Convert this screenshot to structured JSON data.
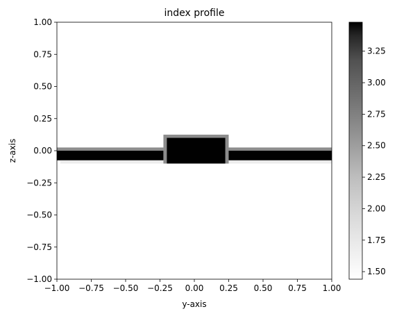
{
  "chart_data": {
    "type": "heatmap",
    "title": "index profile",
    "xlabel": "y-axis",
    "ylabel": "z-axis",
    "xlim": [
      -1.0,
      1.0
    ],
    "ylim": [
      -1.0,
      1.0
    ],
    "x_ticks": [
      "−1.00",
      "−0.75",
      "−0.50",
      "−0.25",
      "0.00",
      "0.25",
      "0.50",
      "0.75",
      "1.00"
    ],
    "y_ticks": [
      "−1.00",
      "−0.75",
      "−0.50",
      "−0.25",
      "0.00",
      "0.25",
      "0.50",
      "0.75",
      "1.00"
    ],
    "colorbar": {
      "range": [
        1.44,
        3.48
      ],
      "colormap": "Greys",
      "ticks": [
        "1.50",
        "1.75",
        "2.00",
        "2.25",
        "2.50",
        "2.75",
        "3.00",
        "3.25"
      ]
    },
    "regions": [
      {
        "name": "slab-top-edge-left",
        "y": [
          -1.0,
          -0.225
        ],
        "z": [
          0.0,
          0.025
        ],
        "n": 2.65
      },
      {
        "name": "slab-top-edge-right",
        "y": [
          0.225,
          1.0
        ],
        "z": [
          0.0,
          0.025
        ],
        "n": 2.65
      },
      {
        "name": "slab-core-left",
        "y": [
          -1.0,
          -0.225
        ],
        "z": [
          -0.075,
          0.0
        ],
        "n": 3.476
      },
      {
        "name": "slab-core-right",
        "y": [
          0.225,
          1.0
        ],
        "z": [
          -0.075,
          0.0
        ],
        "n": 3.476
      },
      {
        "name": "slab-bottom-edge-left",
        "y": [
          -0.975,
          -0.225
        ],
        "z": [
          -0.1,
          -0.075
        ],
        "n": 1.7
      },
      {
        "name": "slab-bottom-edge-right",
        "y": [
          0.225,
          1.0
        ],
        "z": [
          -0.1,
          -0.075
        ],
        "n": 1.7
      },
      {
        "name": "ridge-outer",
        "y": [
          -0.225,
          0.25
        ],
        "z": [
          -0.1,
          0.125
        ],
        "n": 2.65
      },
      {
        "name": "ridge-core",
        "y": [
          -0.2,
          0.225
        ],
        "z": [
          -0.1,
          0.1
        ],
        "n": 3.476
      }
    ]
  }
}
